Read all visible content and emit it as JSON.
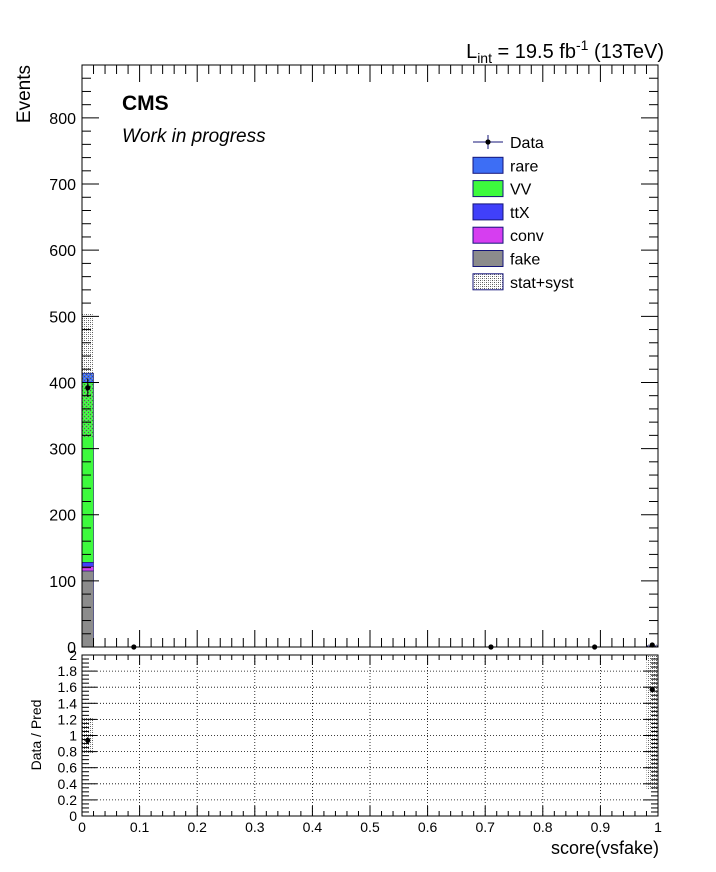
{
  "header": {
    "lumi_prefix": "L",
    "lumi_sub": "int",
    "lumi_mid": " = 19.5 fb",
    "lumi_sup": "-1",
    "lumi_suffix": " (13TeV)"
  },
  "labels": {
    "cms": "CMS",
    "work_in_progress": "Work in progress"
  },
  "colors": {
    "rare": "#3d6ef5",
    "VV": "#3dfa3d",
    "ttX": "#4040fa",
    "conv": "#d63ef0",
    "fake": "#8c8c8c",
    "data": "#000000",
    "legend_border": "#14147a"
  },
  "legend": [
    {
      "key": "data",
      "label": "Data",
      "style": "marker"
    },
    {
      "key": "rare",
      "label": "rare",
      "style": "fill"
    },
    {
      "key": "VV",
      "label": "VV",
      "style": "fill"
    },
    {
      "key": "ttX",
      "label": "ttX",
      "style": "fill"
    },
    {
      "key": "conv",
      "label": "conv",
      "style": "fill"
    },
    {
      "key": "fake",
      "label": "fake",
      "style": "fill"
    },
    {
      "key": "stat_syst",
      "label": "stat+syst",
      "style": "hatch"
    }
  ],
  "chart_data": [
    {
      "type": "bar",
      "stacked": true,
      "ylabel": "Events",
      "xlabel": "",
      "xlim": [
        0,
        1
      ],
      "ylim": [
        0,
        880
      ],
      "xticks": [
        "0",
        "0.1",
        "0.2",
        "0.3",
        "0.4",
        "0.5",
        "0.6",
        "0.7",
        "0.8",
        "0.9",
        "1"
      ],
      "yticks": [
        "0",
        "100",
        "200",
        "300",
        "400",
        "500",
        "600",
        "700",
        "800"
      ],
      "bins": [
        [
          0.0,
          0.02
        ],
        [
          0.98,
          1.0
        ]
      ],
      "series": [
        {
          "name": "fake",
          "values": [
            115,
            0.4
          ]
        },
        {
          "name": "conv",
          "values": [
            7,
            0.1
          ]
        },
        {
          "name": "ttX",
          "values": [
            6,
            0.2
          ]
        },
        {
          "name": "VV",
          "values": [
            272,
            0.8
          ]
        },
        {
          "name": "rare",
          "values": [
            14,
            0.4
          ]
        }
      ],
      "uncertainty_band": {
        "name": "stat+syst",
        "low": [
          316,
          0.4
        ],
        "high": [
          505,
          3.5
        ]
      },
      "data_points": [
        {
          "x": 0.01,
          "y": 392,
          "err": 14
        },
        {
          "x": 0.09,
          "y": 0,
          "err": 0
        },
        {
          "x": 0.71,
          "y": 0,
          "err": 0
        },
        {
          "x": 0.89,
          "y": 0,
          "err": 0
        },
        {
          "x": 0.99,
          "y": 3,
          "err": 1.7
        }
      ]
    },
    {
      "type": "scatter",
      "ylabel": "Data / Pred",
      "xlabel": "score(vsfake)",
      "xlim": [
        0,
        1
      ],
      "ylim": [
        0,
        2
      ],
      "grid": true,
      "xticks": [
        "0",
        "0.1",
        "0.2",
        "0.3",
        "0.4",
        "0.5",
        "0.6",
        "0.7",
        "0.8",
        "0.9",
        "1"
      ],
      "yticks": [
        "0",
        "0.2",
        "0.4",
        "0.6",
        "0.8",
        "1",
        "1.2",
        "1.4",
        "1.6",
        "1.8",
        "2"
      ],
      "points": [
        {
          "x": 0.01,
          "y": 0.94,
          "err": 0.04
        },
        {
          "x": 0.99,
          "y": 1.57,
          "err": 0.0
        }
      ],
      "band": [
        {
          "x0": 0.0,
          "x1": 0.02,
          "low": 0.77,
          "high": 1.22
        },
        {
          "x0": 0.98,
          "x1": 1.0,
          "low": 0.33,
          "high": 2.0
        }
      ]
    }
  ]
}
